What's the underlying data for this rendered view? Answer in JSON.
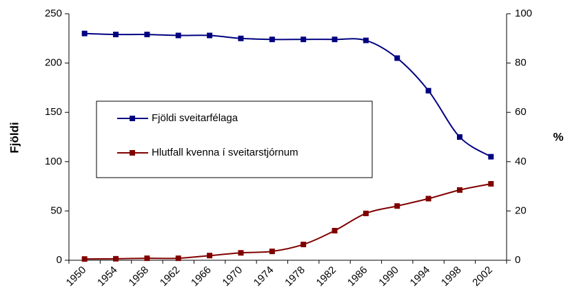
{
  "chart_data": {
    "type": "line",
    "y_label": "Fjöldi",
    "y2_label": "%",
    "categories": [
      "1950",
      "1954",
      "1958",
      "1962",
      "1966",
      "1970",
      "1974",
      "1978",
      "1982",
      "1986",
      "1990",
      "1994",
      "1998",
      "2002"
    ],
    "series": [
      {
        "name": "Fjöldi sveitarfélaga",
        "color": "#000080",
        "axis": "y",
        "values": [
          230,
          229,
          229,
          228,
          228,
          225,
          224,
          224,
          224,
          223,
          205,
          172,
          125,
          105
        ]
      },
      {
        "name": "Hlutfall kvenna í sveitarstjórnum",
        "color": "#800000",
        "axis": "y2",
        "values": [
          0.5,
          0.6,
          0.8,
          0.8,
          1.9,
          3,
          3.6,
          6.4,
          12,
          19,
          22,
          25,
          28.5,
          31
        ]
      }
    ],
    "ylim": [
      0,
      250
    ],
    "yticks": [
      0,
      50,
      100,
      150,
      200,
      250
    ],
    "y2lim": [
      0,
      100
    ],
    "y2ticks": [
      0,
      20,
      40,
      60,
      80,
      100
    ],
    "grid": false,
    "legend": "center-left"
  }
}
